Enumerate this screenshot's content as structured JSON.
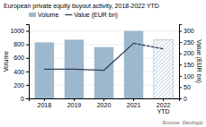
{
  "chart_data": {
    "type": "bar",
    "title": "European private equity buyout activity, 2018-2022 YTD",
    "categories": [
      "2018",
      "2019",
      "2020",
      "2021",
      "2022\nYTD"
    ],
    "series": [
      {
        "name": "Volume",
        "type": "bar",
        "color": "#9db8cc",
        "values": [
          830,
          870,
          760,
          1000,
          870
        ]
      },
      {
        "name": "Value (EUR bn)",
        "type": "line",
        "color": "#2e4057",
        "axis": "y2",
        "values": [
          130,
          130,
          125,
          245,
          220
        ]
      }
    ],
    "ylabel": "Volume",
    "y2label": "Value (EUR bn)",
    "ylim": [
      0,
      1100
    ],
    "yticks": [
      0,
      200,
      400,
      600,
      800,
      1000
    ],
    "y2lim": [
      0,
      330
    ],
    "y2ticks": [
      0,
      50,
      100,
      150,
      200,
      250,
      300
    ],
    "grid": true,
    "legend": "upper left",
    "source": "Source: Deologic"
  }
}
